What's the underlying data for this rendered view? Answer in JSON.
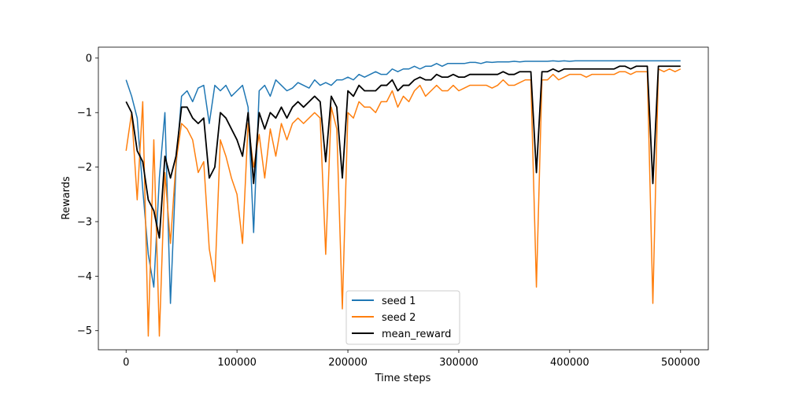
{
  "chart_data": {
    "type": "line",
    "title": "",
    "xlabel": "Time steps",
    "ylabel": "Rewards",
    "xlim": [
      -25000,
      525000
    ],
    "ylim": [
      -5.35,
      0.2
    ],
    "xticks": [
      0,
      100000,
      200000,
      300000,
      400000,
      500000
    ],
    "xtick_labels": [
      "0",
      "100000",
      "200000",
      "300000",
      "400000",
      "500000"
    ],
    "yticks": [
      0,
      -1,
      -2,
      -3,
      -4,
      -5
    ],
    "ytick_labels": [
      "0",
      "−1",
      "−2",
      "−3",
      "−4",
      "−5"
    ],
    "grid": false,
    "legend_position": "bottom-center",
    "x_step": 5000,
    "series": [
      {
        "name": "seed 1",
        "color": "#1f77b4",
        "values": [
          -0.4,
          -0.7,
          -1.1,
          -2.4,
          -3.6,
          -4.2,
          -2.2,
          -1.0,
          -4.5,
          -2.0,
          -0.7,
          -0.6,
          -0.8,
          -0.55,
          -0.5,
          -1.2,
          -0.5,
          -0.6,
          -0.5,
          -0.7,
          -0.6,
          -0.5,
          -0.9,
          -3.2,
          -0.6,
          -0.5,
          -0.7,
          -0.4,
          -0.5,
          -0.6,
          -0.55,
          -0.45,
          -0.5,
          -0.55,
          -0.4,
          -0.5,
          -0.45,
          -0.5,
          -0.4,
          -0.4,
          -0.35,
          -0.4,
          -0.3,
          -0.35,
          -0.3,
          -0.25,
          -0.3,
          -0.3,
          -0.2,
          -0.25,
          -0.2,
          -0.2,
          -0.15,
          -0.2,
          -0.15,
          -0.15,
          -0.1,
          -0.15,
          -0.1,
          -0.1,
          -0.1,
          -0.1,
          -0.08,
          -0.08,
          -0.1,
          -0.07,
          -0.08,
          -0.07,
          -0.07,
          -0.07,
          -0.06,
          -0.07,
          -0.06,
          -0.06,
          -0.06,
          -0.06,
          -0.06,
          -0.05,
          -0.06,
          -0.05,
          -0.06,
          -0.05,
          -0.05,
          -0.05,
          -0.05,
          -0.05,
          -0.05,
          -0.05,
          -0.05,
          -0.05,
          -0.05,
          -0.05,
          -0.05,
          -0.05,
          -0.05,
          -0.05,
          -0.05,
          -0.05,
          -0.05,
          -0.05,
          -0.05
        ]
      },
      {
        "name": "seed 2",
        "color": "#ff7f0e",
        "values": [
          -1.7,
          -1.0,
          -2.6,
          -0.8,
          -5.1,
          -1.5,
          -5.1,
          -2.1,
          -3.4,
          -1.9,
          -1.2,
          -1.3,
          -1.5,
          -2.1,
          -1.9,
          -3.5,
          -4.1,
          -1.5,
          -1.8,
          -2.2,
          -2.5,
          -3.4,
          -1.2,
          -2.0,
          -1.4,
          -2.2,
          -1.3,
          -1.8,
          -1.2,
          -1.5,
          -1.2,
          -1.1,
          -1.2,
          -1.1,
          -1.0,
          -1.1,
          -3.6,
          -0.9,
          -1.3,
          -4.6,
          -1.0,
          -1.1,
          -0.8,
          -0.9,
          -0.9,
          -1.0,
          -0.8,
          -0.8,
          -0.6,
          -0.9,
          -0.7,
          -0.8,
          -0.6,
          -0.5,
          -0.7,
          -0.6,
          -0.5,
          -0.6,
          -0.6,
          -0.5,
          -0.6,
          -0.55,
          -0.5,
          -0.5,
          -0.5,
          -0.5,
          -0.55,
          -0.5,
          -0.4,
          -0.5,
          -0.5,
          -0.45,
          -0.4,
          -0.4,
          -4.2,
          -0.4,
          -0.4,
          -0.3,
          -0.4,
          -0.35,
          -0.3,
          -0.3,
          -0.3,
          -0.35,
          -0.3,
          -0.3,
          -0.3,
          -0.3,
          -0.3,
          -0.25,
          -0.25,
          -0.3,
          -0.25,
          -0.25,
          -0.25,
          -4.5,
          -0.2,
          -0.25,
          -0.2,
          -0.25,
          -0.2
        ]
      },
      {
        "name": "mean_reward",
        "color": "#000000",
        "values": [
          -0.8,
          -1.0,
          -1.7,
          -1.9,
          -2.6,
          -2.8,
          -3.3,
          -1.8,
          -2.2,
          -1.8,
          -0.9,
          -0.9,
          -1.1,
          -1.2,
          -1.1,
          -2.2,
          -2.0,
          -1.0,
          -1.1,
          -1.3,
          -1.5,
          -1.8,
          -1.0,
          -2.3,
          -1.0,
          -1.3,
          -1.0,
          -1.1,
          -0.9,
          -1.1,
          -0.9,
          -0.8,
          -0.9,
          -0.8,
          -0.7,
          -0.8,
          -1.9,
          -0.7,
          -0.9,
          -2.2,
          -0.6,
          -0.7,
          -0.5,
          -0.6,
          -0.6,
          -0.6,
          -0.5,
          -0.5,
          -0.4,
          -0.6,
          -0.5,
          -0.5,
          -0.4,
          -0.35,
          -0.4,
          -0.4,
          -0.3,
          -0.35,
          -0.35,
          -0.3,
          -0.35,
          -0.35,
          -0.3,
          -0.3,
          -0.3,
          -0.3,
          -0.3,
          -0.3,
          -0.25,
          -0.3,
          -0.3,
          -0.25,
          -0.25,
          -0.25,
          -2.1,
          -0.25,
          -0.25,
          -0.2,
          -0.25,
          -0.2,
          -0.2,
          -0.2,
          -0.2,
          -0.2,
          -0.2,
          -0.2,
          -0.2,
          -0.2,
          -0.2,
          -0.15,
          -0.15,
          -0.2,
          -0.15,
          -0.15,
          -0.15,
          -2.3,
          -0.15,
          -0.15,
          -0.15,
          -0.15,
          -0.15
        ]
      }
    ]
  }
}
